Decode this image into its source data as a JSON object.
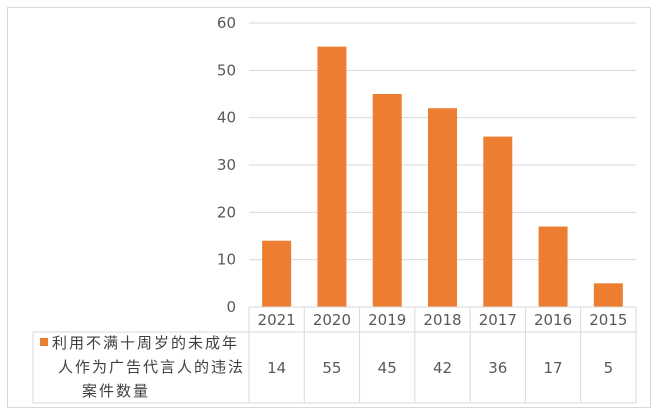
{
  "chart_data": {
    "type": "bar",
    "categories": [
      "2021",
      "2020",
      "2019",
      "2018",
      "2017",
      "2016",
      "2015"
    ],
    "series": [
      {
        "name": "利用不满十周岁的未成年人作为广告代言人的违法案件数量",
        "values": [
          14,
          55,
          45,
          42,
          36,
          17,
          5
        ],
        "color": "#ed7d31"
      }
    ],
    "legend_lines": [
      "利用不满十周岁的未成年",
      "人作为广告代言人的违法",
      "案件数量"
    ],
    "yticks": [
      "0",
      "10",
      "20",
      "30",
      "40",
      "50",
      "60"
    ],
    "ylim": [
      0,
      60
    ],
    "grid": true,
    "data_table": true,
    "legend_placement": "data-table-left"
  }
}
